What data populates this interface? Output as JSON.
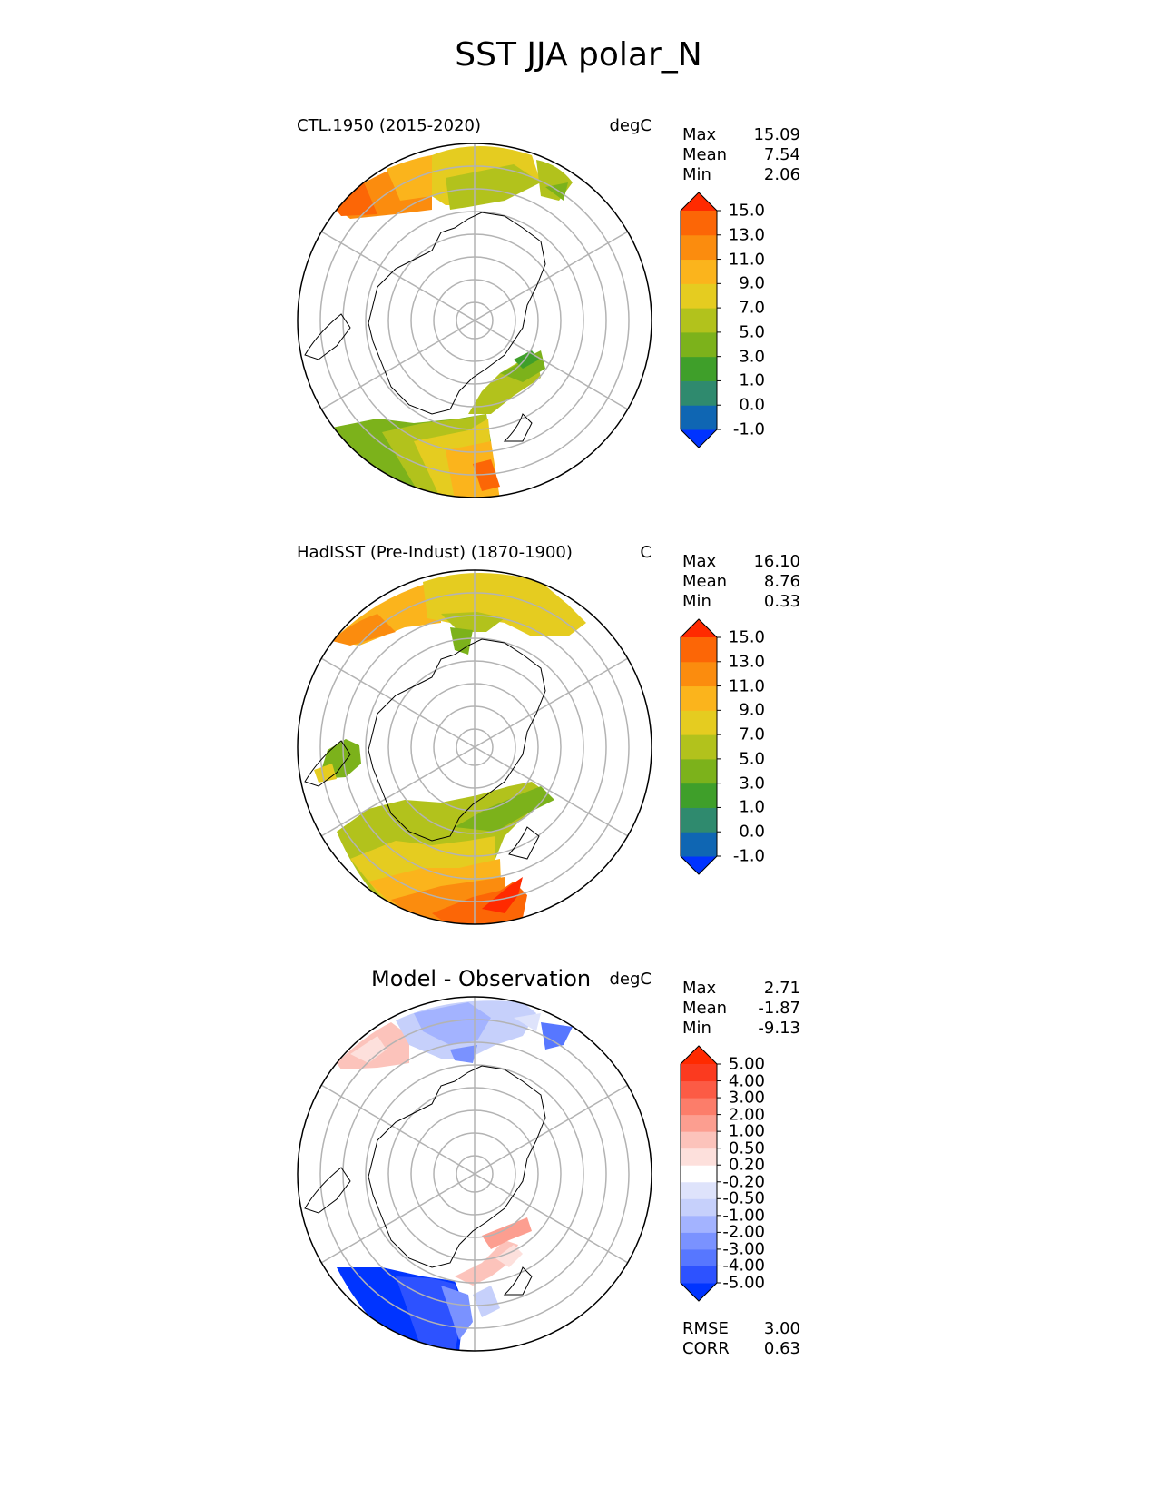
{
  "title": "SST JJA polar_N",
  "chart_data": [
    {
      "type": "heatmap",
      "projection": "north-polar-stereographic",
      "label": "CTL.1950 (2015-2020)",
      "units": "degC",
      "stats": {
        "max": "15.09",
        "mean": "7.54",
        "min": "2.06"
      },
      "stat_labels": {
        "max": "Max",
        "mean": "Mean",
        "min": "Min"
      },
      "colorbar": {
        "levels": [
          "-1.0",
          "0.0",
          "1.0",
          "3.0",
          "5.0",
          "7.0",
          "9.0",
          "11.0",
          "13.0",
          "15.0"
        ],
        "colors": [
          "#0033ff",
          "#0f66b3",
          "#2f8a6e",
          "#3f9f2a",
          "#7cb21b",
          "#b2c21c",
          "#e5cc20",
          "#fbb41c",
          "#fb8c0e",
          "#fc6606",
          "#ff2a00"
        ]
      }
    },
    {
      "type": "heatmap",
      "projection": "north-polar-stereographic",
      "label": "HadISST (Pre-Indust) (1870-1900)",
      "units": "C",
      "stats": {
        "max": "16.10",
        "mean": "8.76",
        "min": "0.33"
      },
      "stat_labels": {
        "max": "Max",
        "mean": "Mean",
        "min": "Min"
      },
      "colorbar": {
        "levels": [
          "-1.0",
          "0.0",
          "1.0",
          "3.0",
          "5.0",
          "7.0",
          "9.0",
          "11.0",
          "13.0",
          "15.0"
        ],
        "colors": [
          "#0033ff",
          "#0f66b3",
          "#2f8a6e",
          "#3f9f2a",
          "#7cb21b",
          "#b2c21c",
          "#e5cc20",
          "#fbb41c",
          "#fb8c0e",
          "#fc6606",
          "#ff2a00"
        ]
      }
    },
    {
      "type": "heatmap",
      "projection": "north-polar-stereographic",
      "label": "Model - Observation",
      "units": "degC",
      "stats": {
        "max": "2.71",
        "mean": "-1.87",
        "min": "-9.13"
      },
      "stat_labels": {
        "max": "Max",
        "mean": "Mean",
        "min": "Min"
      },
      "metrics": {
        "rmse_label": "RMSE",
        "rmse": "3.00",
        "corr_label": "CORR",
        "corr": "0.63"
      },
      "colorbar": {
        "levels": [
          "-5.00",
          "-4.00",
          "-3.00",
          "-2.00",
          "-1.00",
          "-0.50",
          "-0.20",
          "0.20",
          "0.50",
          "1.00",
          "2.00",
          "3.00",
          "4.00",
          "5.00"
        ],
        "colors": [
          "#0034ff",
          "#2d52ff",
          "#5777ff",
          "#7a92ff",
          "#a3b3ff",
          "#c6d0fb",
          "#dee3fb",
          "#ffffff",
          "#fde0dc",
          "#fcc3bb",
          "#fc9e90",
          "#fc7d6a",
          "#fc5b45",
          "#fb3a1f",
          "#ff2a00"
        ]
      }
    }
  ]
}
